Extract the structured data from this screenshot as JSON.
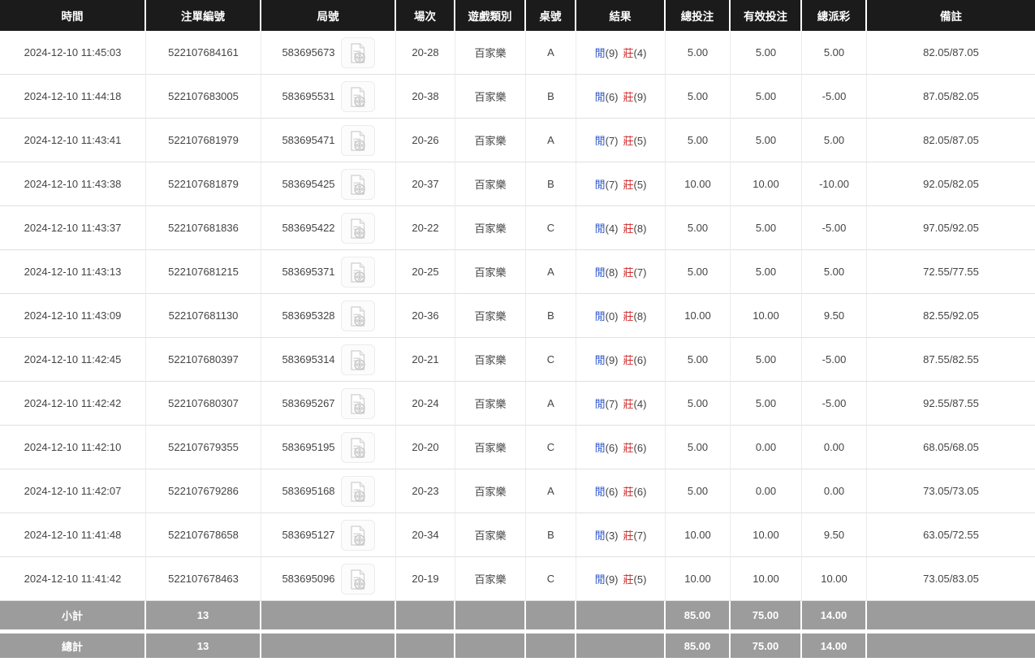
{
  "table": {
    "columns": [
      {
        "key": "time",
        "label": "時間"
      },
      {
        "key": "bet_id",
        "label": "注單編號"
      },
      {
        "key": "round",
        "label": "局號"
      },
      {
        "key": "session",
        "label": "場次"
      },
      {
        "key": "game",
        "label": "遊戲類別"
      },
      {
        "key": "table_no",
        "label": "桌號"
      },
      {
        "key": "result",
        "label": "結果"
      },
      {
        "key": "total_bet",
        "label": "總投注"
      },
      {
        "key": "valid_bet",
        "label": "有效投注"
      },
      {
        "key": "payout",
        "label": "總派彩"
      },
      {
        "key": "remark",
        "label": "備註"
      }
    ],
    "rows": [
      {
        "time": "2024-12-10 11:45:03",
        "bet_id": "522107684161",
        "round": "583695673",
        "session": "20-28",
        "game": "百家樂",
        "table_no": "A",
        "result": {
          "player_label": "閒",
          "player_score": "(9)",
          "banker_label": "莊",
          "banker_score": "(4)"
        },
        "total_bet": "5.00",
        "valid_bet": "5.00",
        "payout": "5.00",
        "remark": "82.05/87.05"
      },
      {
        "time": "2024-12-10 11:44:18",
        "bet_id": "522107683005",
        "round": "583695531",
        "session": "20-38",
        "game": "百家樂",
        "table_no": "B",
        "result": {
          "player_label": "閒",
          "player_score": "(6)",
          "banker_label": "莊",
          "banker_score": "(9)"
        },
        "total_bet": "5.00",
        "valid_bet": "5.00",
        "payout": "-5.00",
        "remark": "87.05/82.05"
      },
      {
        "time": "2024-12-10 11:43:41",
        "bet_id": "522107681979",
        "round": "583695471",
        "session": "20-26",
        "game": "百家樂",
        "table_no": "A",
        "result": {
          "player_label": "閒",
          "player_score": "(7)",
          "banker_label": "莊",
          "banker_score": "(5)"
        },
        "total_bet": "5.00",
        "valid_bet": "5.00",
        "payout": "5.00",
        "remark": "82.05/87.05"
      },
      {
        "time": "2024-12-10 11:43:38",
        "bet_id": "522107681879",
        "round": "583695425",
        "session": "20-37",
        "game": "百家樂",
        "table_no": "B",
        "result": {
          "player_label": "閒",
          "player_score": "(7)",
          "banker_label": "莊",
          "banker_score": "(5)"
        },
        "total_bet": "10.00",
        "valid_bet": "10.00",
        "payout": "-10.00",
        "remark": "92.05/82.05"
      },
      {
        "time": "2024-12-10 11:43:37",
        "bet_id": "522107681836",
        "round": "583695422",
        "session": "20-22",
        "game": "百家樂",
        "table_no": "C",
        "result": {
          "player_label": "閒",
          "player_score": "(4)",
          "banker_label": "莊",
          "banker_score": "(8)"
        },
        "total_bet": "5.00",
        "valid_bet": "5.00",
        "payout": "-5.00",
        "remark": "97.05/92.05"
      },
      {
        "time": "2024-12-10 11:43:13",
        "bet_id": "522107681215",
        "round": "583695371",
        "session": "20-25",
        "game": "百家樂",
        "table_no": "A",
        "result": {
          "player_label": "閒",
          "player_score": "(8)",
          "banker_label": "莊",
          "banker_score": "(7)"
        },
        "total_bet": "5.00",
        "valid_bet": "5.00",
        "payout": "5.00",
        "remark": "72.55/77.55"
      },
      {
        "time": "2024-12-10 11:43:09",
        "bet_id": "522107681130",
        "round": "583695328",
        "session": "20-36",
        "game": "百家樂",
        "table_no": "B",
        "result": {
          "player_label": "閒",
          "player_score": "(0)",
          "banker_label": "莊",
          "banker_score": "(8)"
        },
        "total_bet": "10.00",
        "valid_bet": "10.00",
        "payout": "9.50",
        "remark": "82.55/92.05"
      },
      {
        "time": "2024-12-10 11:42:45",
        "bet_id": "522107680397",
        "round": "583695314",
        "session": "20-21",
        "game": "百家樂",
        "table_no": "C",
        "result": {
          "player_label": "閒",
          "player_score": "(9)",
          "banker_label": "莊",
          "banker_score": "(6)"
        },
        "total_bet": "5.00",
        "valid_bet": "5.00",
        "payout": "-5.00",
        "remark": "87.55/82.55"
      },
      {
        "time": "2024-12-10 11:42:42",
        "bet_id": "522107680307",
        "round": "583695267",
        "session": "20-24",
        "game": "百家樂",
        "table_no": "A",
        "result": {
          "player_label": "閒",
          "player_score": "(7)",
          "banker_label": "莊",
          "banker_score": "(4)"
        },
        "total_bet": "5.00",
        "valid_bet": "5.00",
        "payout": "-5.00",
        "remark": "92.55/87.55"
      },
      {
        "time": "2024-12-10 11:42:10",
        "bet_id": "522107679355",
        "round": "583695195",
        "session": "20-20",
        "game": "百家樂",
        "table_no": "C",
        "result": {
          "player_label": "閒",
          "player_score": "(6)",
          "banker_label": "莊",
          "banker_score": "(6)"
        },
        "total_bet": "5.00",
        "valid_bet": "0.00",
        "payout": "0.00",
        "remark": "68.05/68.05"
      },
      {
        "time": "2024-12-10 11:42:07",
        "bet_id": "522107679286",
        "round": "583695168",
        "session": "20-23",
        "game": "百家樂",
        "table_no": "A",
        "result": {
          "player_label": "閒",
          "player_score": "(6)",
          "banker_label": "莊",
          "banker_score": "(6)"
        },
        "total_bet": "5.00",
        "valid_bet": "0.00",
        "payout": "0.00",
        "remark": "73.05/73.05"
      },
      {
        "time": "2024-12-10 11:41:48",
        "bet_id": "522107678658",
        "round": "583695127",
        "session": "20-34",
        "game": "百家樂",
        "table_no": "B",
        "result": {
          "player_label": "閒",
          "player_score": "(3)",
          "banker_label": "莊",
          "banker_score": "(7)"
        },
        "total_bet": "10.00",
        "valid_bet": "10.00",
        "payout": "9.50",
        "remark": "63.05/72.55"
      },
      {
        "time": "2024-12-10 11:41:42",
        "bet_id": "522107678463",
        "round": "583695096",
        "session": "20-19",
        "game": "百家樂",
        "table_no": "C",
        "result": {
          "player_label": "閒",
          "player_score": "(9)",
          "banker_label": "莊",
          "banker_score": "(5)"
        },
        "total_bet": "10.00",
        "valid_bet": "10.00",
        "payout": "10.00",
        "remark": "73.05/83.05"
      }
    ],
    "summary_rows": [
      {
        "label": "小計",
        "count": "13",
        "total_bet": "85.00",
        "valid_bet": "75.00",
        "payout": "14.00"
      },
      {
        "label": "總計",
        "count": "13",
        "total_bet": "85.00",
        "valid_bet": "75.00",
        "payout": "14.00"
      }
    ]
  },
  "icons": {
    "round_video_icon": "video-file-icon"
  },
  "colors": {
    "header_bg": "#1b1b1b",
    "header_text": "#ffffff",
    "player_blue": "#2b55cb",
    "banker_red": "#cf2b2b",
    "bet_blue": "#2f63d6",
    "negative_red": "#e02222",
    "summary_bg": "#9c9c9c",
    "summary_text": "#ffffff"
  }
}
